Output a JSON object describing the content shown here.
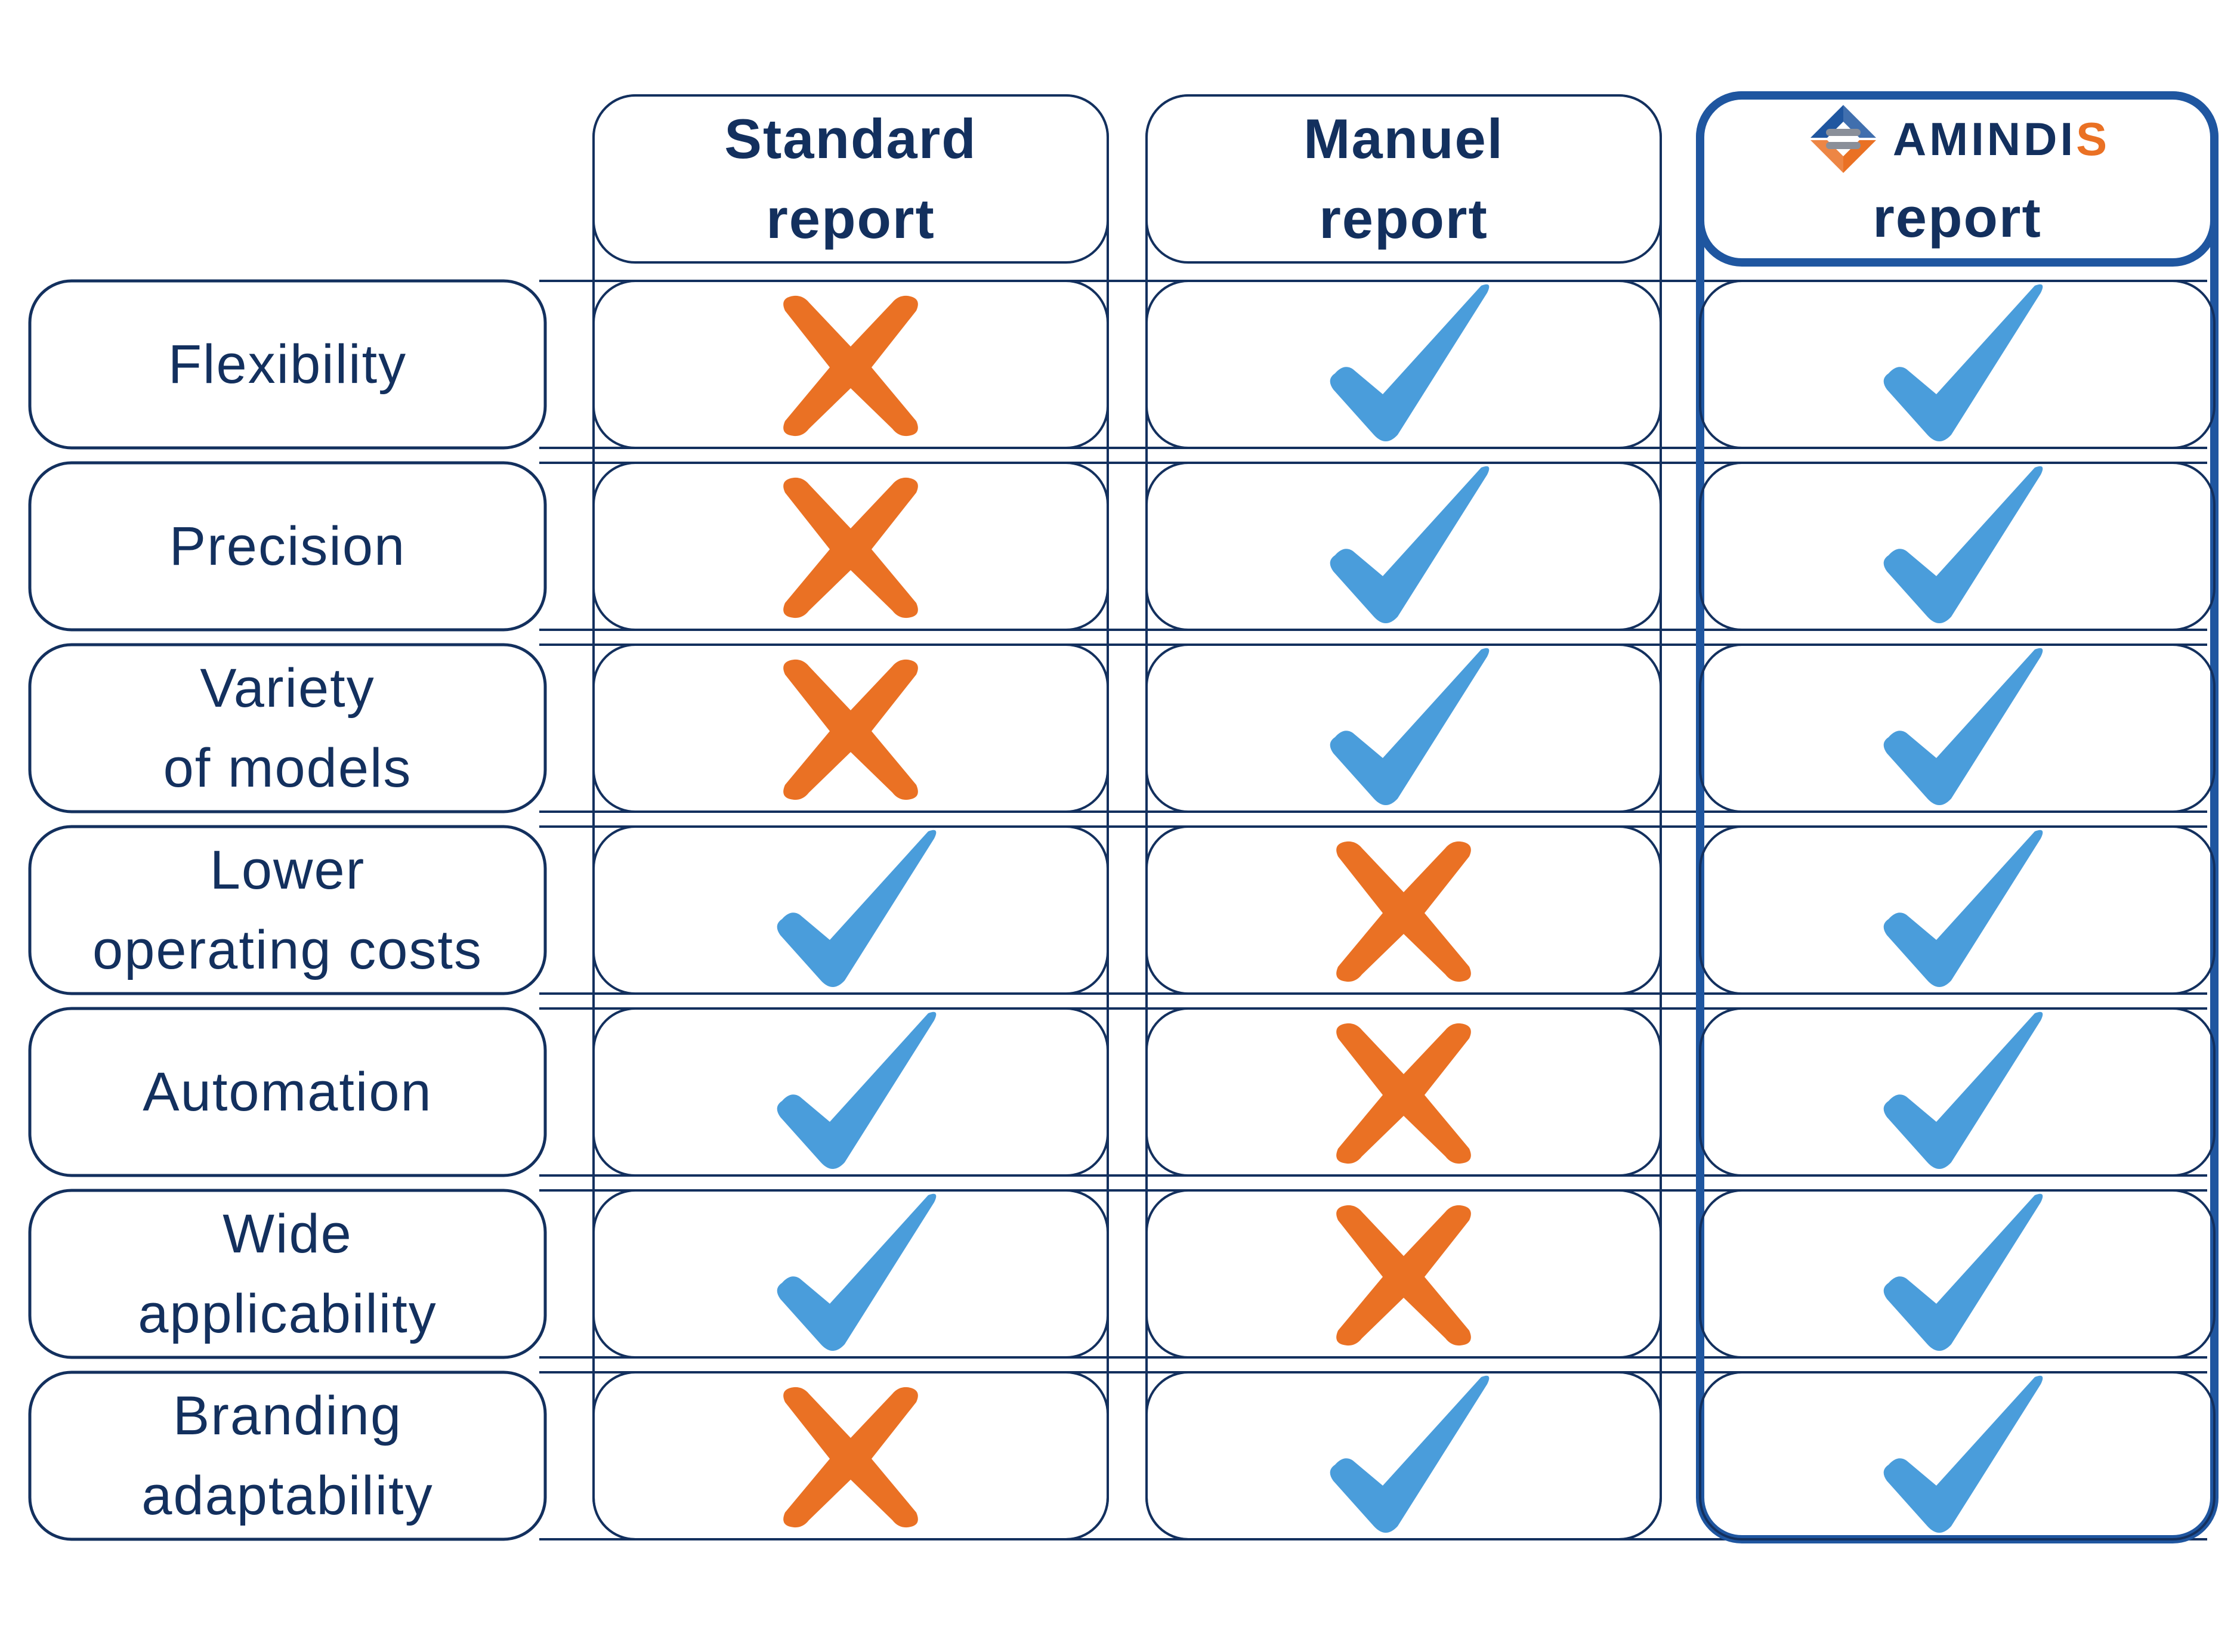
{
  "colors": {
    "outline": "#13305e",
    "highlight_outline": "#1f56a0",
    "check": "#4a9ddb",
    "cross": "#ea7124",
    "brand_orange": "#ea7124"
  },
  "columns": [
    {
      "id": "standard",
      "line1": "Standard",
      "line2": "report"
    },
    {
      "id": "manuel",
      "line1": "Manuel",
      "line2": "report"
    },
    {
      "id": "amindis",
      "brand_main": "AMINDI",
      "brand_accent": "S",
      "line2": "report",
      "logo_icon": "amindis-logo-icon"
    }
  ],
  "rows": [
    {
      "label": "Flexibility",
      "values": [
        false,
        true,
        true
      ]
    },
    {
      "label": "Precision",
      "values": [
        false,
        true,
        true
      ]
    },
    {
      "label": "Variety\nof models",
      "values": [
        false,
        true,
        true
      ]
    },
    {
      "label": "Lower\noperating costs",
      "values": [
        true,
        false,
        true
      ]
    },
    {
      "label": "Automation",
      "values": [
        true,
        false,
        true
      ]
    },
    {
      "label": "Wide\napplicability",
      "values": [
        true,
        false,
        true
      ]
    },
    {
      "label": "Branding\nadaptability",
      "values": [
        false,
        true,
        true
      ]
    }
  ],
  "icons": {
    "yes": "check-icon",
    "no": "cross-icon"
  }
}
